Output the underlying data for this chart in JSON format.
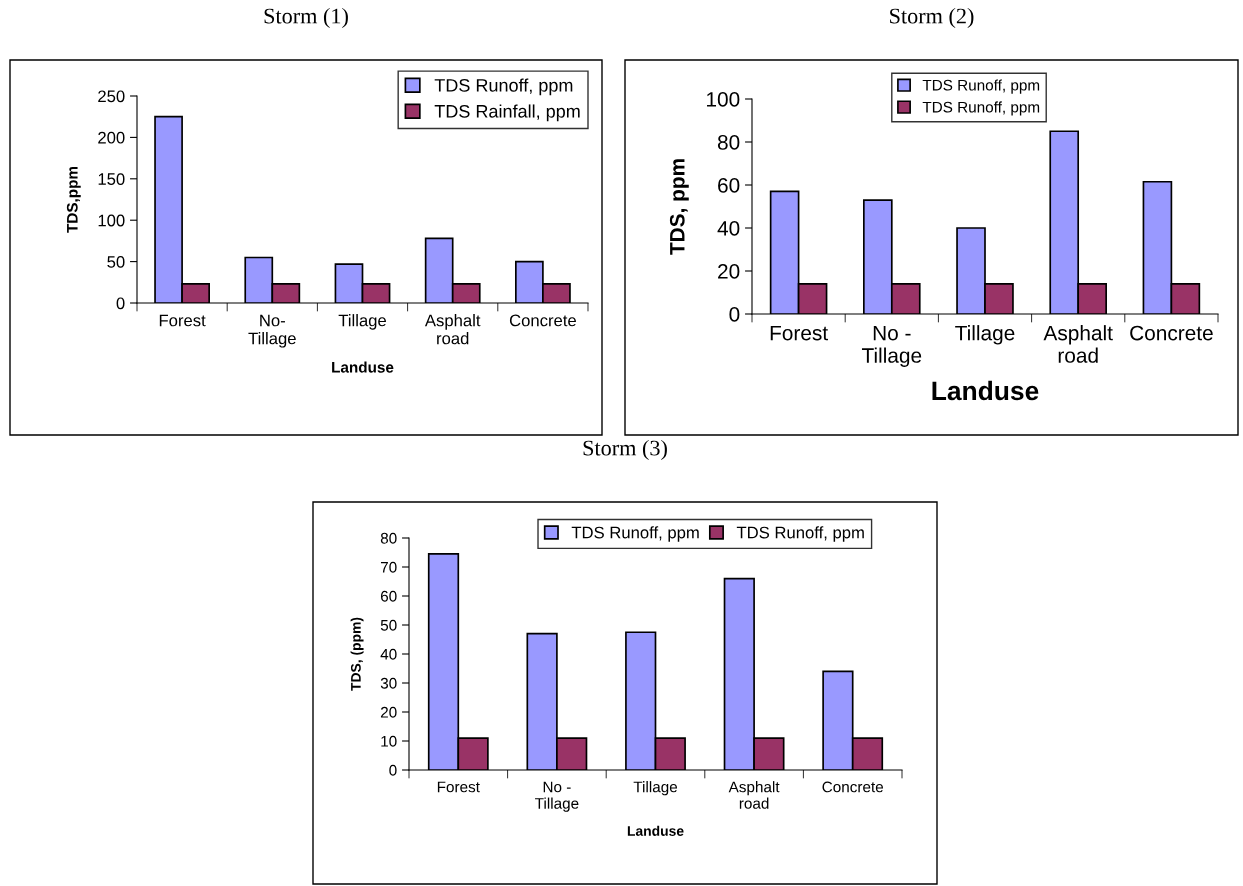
{
  "chart_data": [
    {
      "type": "bar",
      "title": "Storm (1)",
      "xlabel": "Landuse",
      "ylabel": "TDS,ppm",
      "categories": [
        "Forest",
        "No-\nTillage",
        "Tillage",
        "Asphalt\nroad",
        "Concrete"
      ],
      "ylim": [
        0,
        250
      ],
      "yticks": [
        0,
        50,
        100,
        150,
        200,
        250
      ],
      "legend": "top right",
      "grid": false,
      "series": [
        {
          "name": "TDS Runoff, ppm",
          "color": "#9999ff",
          "values": [
            225,
            55,
            47,
            78,
            50
          ]
        },
        {
          "name": "TDS Rainfall, ppm",
          "color": "#993366",
          "values": [
            23,
            23,
            23,
            23,
            23
          ]
        }
      ]
    },
    {
      "type": "bar",
      "title": "Storm (2)",
      "xlabel": "Landuse",
      "ylabel": "TDS, ppm",
      "categories": [
        "Forest",
        "No -\nTillage",
        "Tillage",
        "Asphalt\nroad",
        "Concrete"
      ],
      "ylim": [
        0,
        100
      ],
      "yticks": [
        0,
        20,
        40,
        60,
        80,
        100
      ],
      "legend": "top left",
      "grid": false,
      "series": [
        {
          "name": "TDS Runoff, ppm",
          "color": "#9999ff",
          "values": [
            57,
            53,
            40,
            85,
            61.5
          ]
        },
        {
          "name": "TDS Runoff, ppm",
          "color": "#993366",
          "values": [
            14,
            14,
            14,
            14,
            14
          ]
        }
      ]
    },
    {
      "type": "bar",
      "title": "Storm (3)",
      "xlabel": "Landuse",
      "ylabel": "TDS, (ppm)",
      "categories": [
        "Forest",
        "No -\nTillage",
        "Tillage",
        "Asphalt\nroad",
        "Concrete"
      ],
      "ylim": [
        0,
        80
      ],
      "yticks": [
        0,
        10,
        20,
        30,
        40,
        50,
        60,
        70,
        80
      ],
      "legend": "top",
      "grid": false,
      "series": [
        {
          "name": "TDS Runoff, ppm",
          "color": "#9999ff",
          "values": [
            74.5,
            47,
            47.5,
            66,
            34
          ]
        },
        {
          "name": "TDS Runoff, ppm",
          "color": "#993366",
          "values": [
            11,
            11,
            11,
            11,
            11
          ]
        }
      ]
    }
  ]
}
